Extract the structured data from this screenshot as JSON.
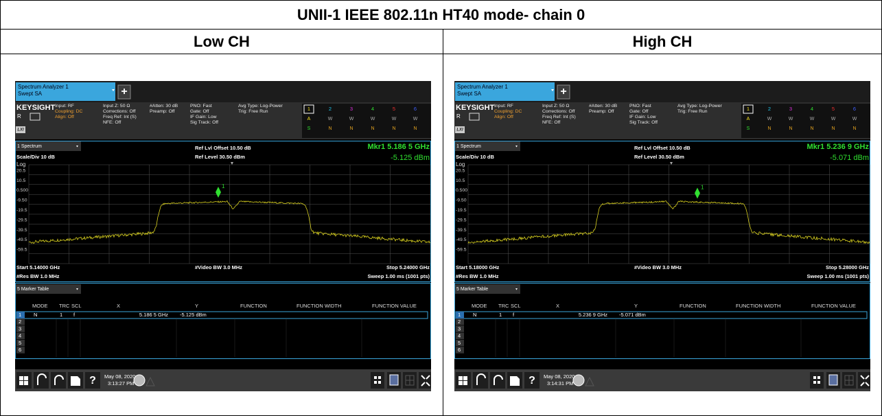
{
  "title": "UNII-1 IEEE 802.11n HT40 mode- chain 0",
  "common": {
    "tab_title": "Spectrum Analyzer 1",
    "tab_sub": "Swept SA",
    "plus": "+",
    "brand": "KEYSIGHT",
    "r_label": "R",
    "lxi": "LXI",
    "status": [
      [
        "Input: RF",
        "Coupling: DC",
        "Align: Off"
      ],
      [
        "Input Z: 50 Ω",
        "Corrections: Off",
        "Freq Ref: Int (S)",
        "NFE: Off"
      ],
      [
        "#Atten: 30 dB",
        "Preamp: Off"
      ],
      [
        "PNO: Fast",
        "Gate: Off",
        "IF Gain: Low",
        "Sig Track: Off"
      ],
      [
        "Avg Type: Log-Power",
        "Trig: Free Run"
      ]
    ],
    "trace_numbers": [
      "1",
      "2",
      "3",
      "4",
      "5",
      "6"
    ],
    "trace_types": [
      "A",
      "W",
      "W",
      "W",
      "W",
      "W"
    ],
    "trace_detectors": [
      "S",
      "N",
      "N",
      "N",
      "N",
      "N"
    ],
    "window1": "1 Spectrum",
    "ref_offset": "Ref Lvl Offset 10.50 dB",
    "ref_level": "Ref Level 30.50 dBm",
    "scale": "Scale/Div 10 dB",
    "log": "Log",
    "y_labels": [
      "20.5",
      "10.5",
      "0.500",
      "-9.50",
      "-19.5",
      "-29.5",
      "-39.5",
      "-49.5",
      "-59.5"
    ],
    "video_bw": "#Video BW 3.0 MHz",
    "res_bw": "#Res BW 1.0 MHz",
    "sweep": "Sweep 1.00 ms (1001 pts)",
    "window2": "5 Marker Table",
    "table_headers": [
      "MODE",
      "TRC",
      "SCL",
      "X",
      "Y",
      "FUNCTION",
      "FUNCTION WIDTH",
      "FUNCTION VALUE"
    ],
    "row1": [
      "1",
      "N",
      "1",
      "f"
    ],
    "row_numbers": [
      "2",
      "3",
      "4",
      "5",
      "6"
    ],
    "marker_label": "1",
    "help": "?"
  },
  "panels": [
    {
      "header": "Low CH",
      "mkr_freq": "Mkr1  5.186 5 GHz",
      "mkr_level": "-5.125 dBm",
      "start": "Start 5.14000 GHz",
      "stop": "Stop 5.24000 GHz",
      "marker_x": "5.186 5 GHz",
      "marker_y": "-5.125 dBm",
      "date": "May 08, 2020",
      "time": "3:13:27 PM"
    },
    {
      "header": "High CH",
      "mkr_freq": "Mkr1  5.236 9 GHz",
      "mkr_level": "-5.071 dBm",
      "start": "Start 5.18000 GHz",
      "stop": "Stop 5.28000 GHz",
      "marker_x": "5.236 9 GHz",
      "marker_y": "-5.071 dBm",
      "date": "May 08, 2020",
      "time": "3:14:31 PM"
    }
  ]
}
